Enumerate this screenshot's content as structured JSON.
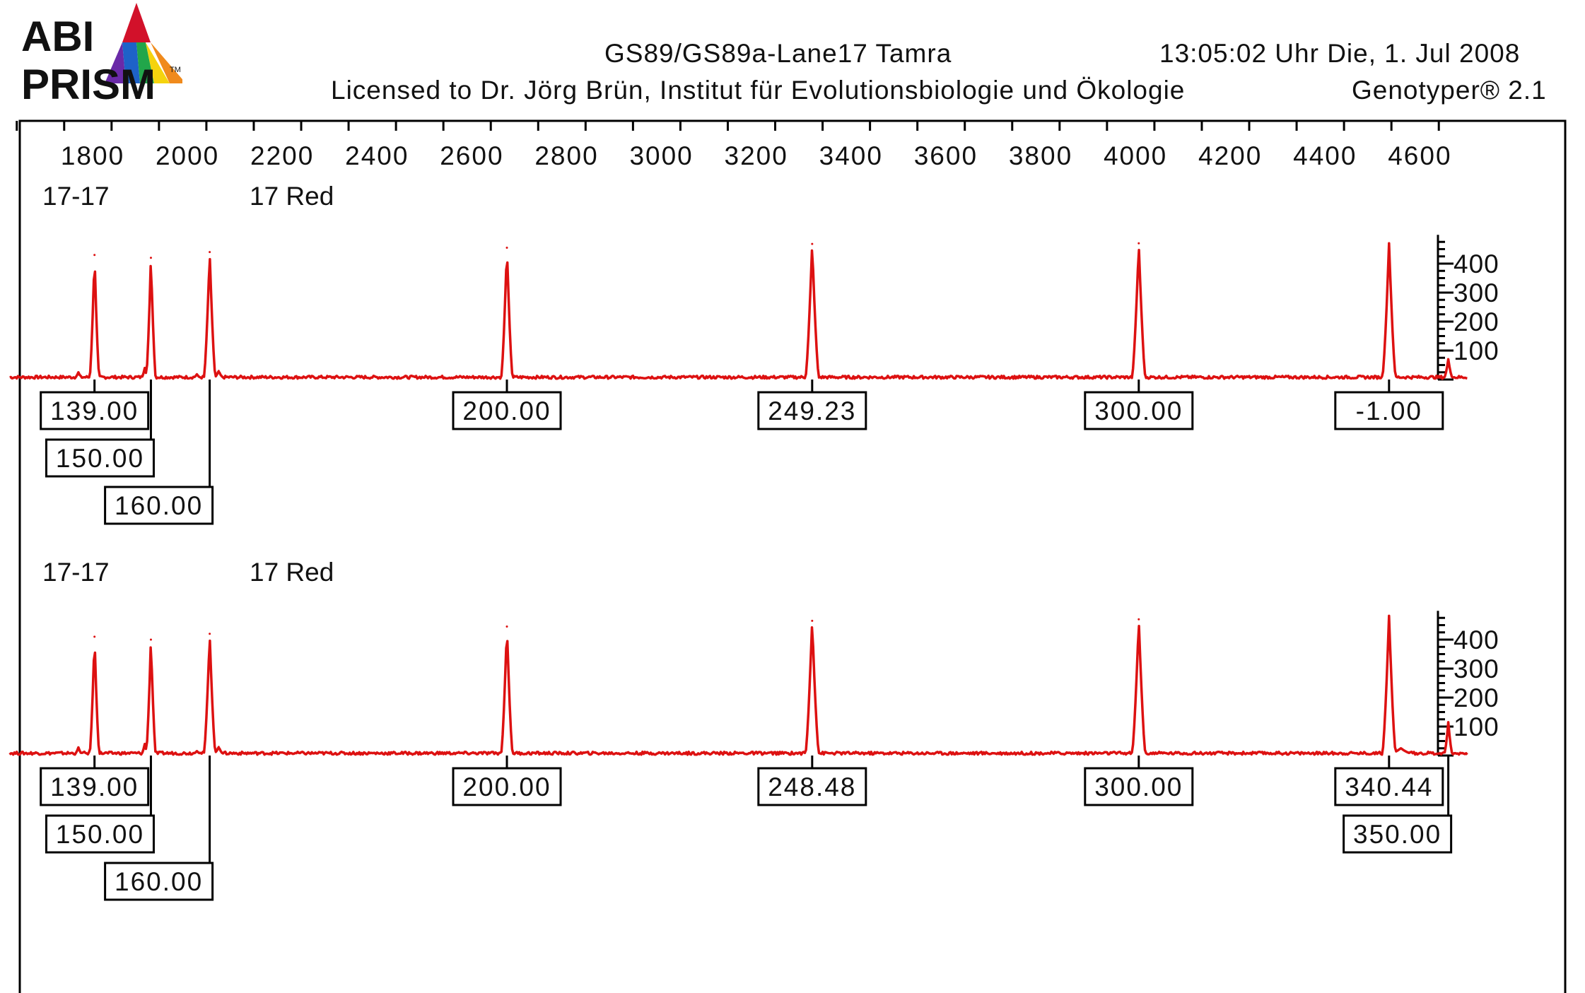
{
  "header": {
    "logo_line1": "ABI",
    "logo_line2": "PRISM",
    "logo_tm": "TM",
    "sample": "GS89/GS89a-Lane17  Tamra",
    "timestamp": "13:05:02  Uhr  Die,  1.  Jul  2008",
    "license": "Licensed  to  Dr.  Jörg  Brün,  Institut  für  Evolutionsbiologie  und  Ökologie",
    "product": "Genotyper® 2.1"
  },
  "colors": {
    "trace": "#dd1111",
    "axis": "#000000",
    "logo_text": "#111111"
  },
  "chart_data": {
    "type": "line",
    "x_axis": {
      "range": [
        1640,
        4700
      ],
      "tick_labels": [
        1800,
        2000,
        2200,
        2400,
        2600,
        2800,
        3000,
        3200,
        3400,
        3600,
        3800,
        4000,
        4200,
        4400,
        4600
      ],
      "minor_step": 100
    },
    "panels": [
      {
        "lane_label": "17-17",
        "dye_label": "17 Red",
        "y_axis": {
          "range": [
            0,
            480
          ],
          "tick_labels": [
            100,
            200,
            300,
            400
          ]
        },
        "baseline": 8,
        "peaks": [
          {
            "x": 1804,
            "height": 430,
            "width": 10
          },
          {
            "x": 1923,
            "height": 420,
            "width": 10
          },
          {
            "x": 2047,
            "height": 440,
            "width": 12
          },
          {
            "x": 2674,
            "height": 455,
            "width": 12
          },
          {
            "x": 3318,
            "height": 468,
            "width": 14
          },
          {
            "x": 4007,
            "height": 470,
            "width": 14
          },
          {
            "x": 4535,
            "height": 470,
            "width": 14
          },
          {
            "x": 4660,
            "height": 70,
            "width": 8
          },
          {
            "x": 1770,
            "height": 25,
            "width": 6
          },
          {
            "x": 1910,
            "height": 40,
            "width": 6
          },
          {
            "x": 2020,
            "height": 18,
            "width": 6
          },
          {
            "x": 2066,
            "height": 30,
            "width": 8
          }
        ],
        "size_labels": [
          {
            "label": "139.00",
            "x": 1804,
            "row": 0
          },
          {
            "label": "150.00",
            "x": 1923,
            "row": 1
          },
          {
            "label": "160.00",
            "x": 2047,
            "row": 2
          },
          {
            "label": "200.00",
            "x": 2674,
            "row": 0
          },
          {
            "label": "249.23",
            "x": 3318,
            "row": 0
          },
          {
            "label": "300.00",
            "x": 4007,
            "row": 0
          },
          {
            "label": "-1.00",
            "x": 4535,
            "row": 0
          }
        ]
      },
      {
        "lane_label": "17-17",
        "dye_label": "17 Red",
        "y_axis": {
          "range": [
            0,
            480
          ],
          "tick_labels": [
            100,
            200,
            300,
            400
          ]
        },
        "baseline": 8,
        "peaks": [
          {
            "x": 1804,
            "height": 410,
            "width": 10
          },
          {
            "x": 1923,
            "height": 400,
            "width": 10
          },
          {
            "x": 2047,
            "height": 420,
            "width": 12
          },
          {
            "x": 2674,
            "height": 445,
            "width": 12
          },
          {
            "x": 3318,
            "height": 465,
            "width": 14
          },
          {
            "x": 4007,
            "height": 470,
            "width": 14
          },
          {
            "x": 4535,
            "height": 482,
            "width": 14
          },
          {
            "x": 4660,
            "height": 115,
            "width": 8
          },
          {
            "x": 1770,
            "height": 28,
            "width": 6
          },
          {
            "x": 1910,
            "height": 40,
            "width": 6
          },
          {
            "x": 2020,
            "height": 15,
            "width": 6
          },
          {
            "x": 2066,
            "height": 30,
            "width": 8
          },
          {
            "x": 4560,
            "height": 25,
            "width": 20
          }
        ],
        "size_labels": [
          {
            "label": "139.00",
            "x": 1804,
            "row": 0
          },
          {
            "label": "150.00",
            "x": 1923,
            "row": 1
          },
          {
            "label": "160.00",
            "x": 2047,
            "row": 2
          },
          {
            "label": "200.00",
            "x": 2674,
            "row": 0
          },
          {
            "label": "248.48",
            "x": 3318,
            "row": 0
          },
          {
            "label": "300.00",
            "x": 4007,
            "row": 0
          },
          {
            "label": "340.44",
            "x": 4535,
            "row": 0
          },
          {
            "label": "350.00",
            "x": 4660,
            "row": 1
          }
        ]
      }
    ]
  }
}
